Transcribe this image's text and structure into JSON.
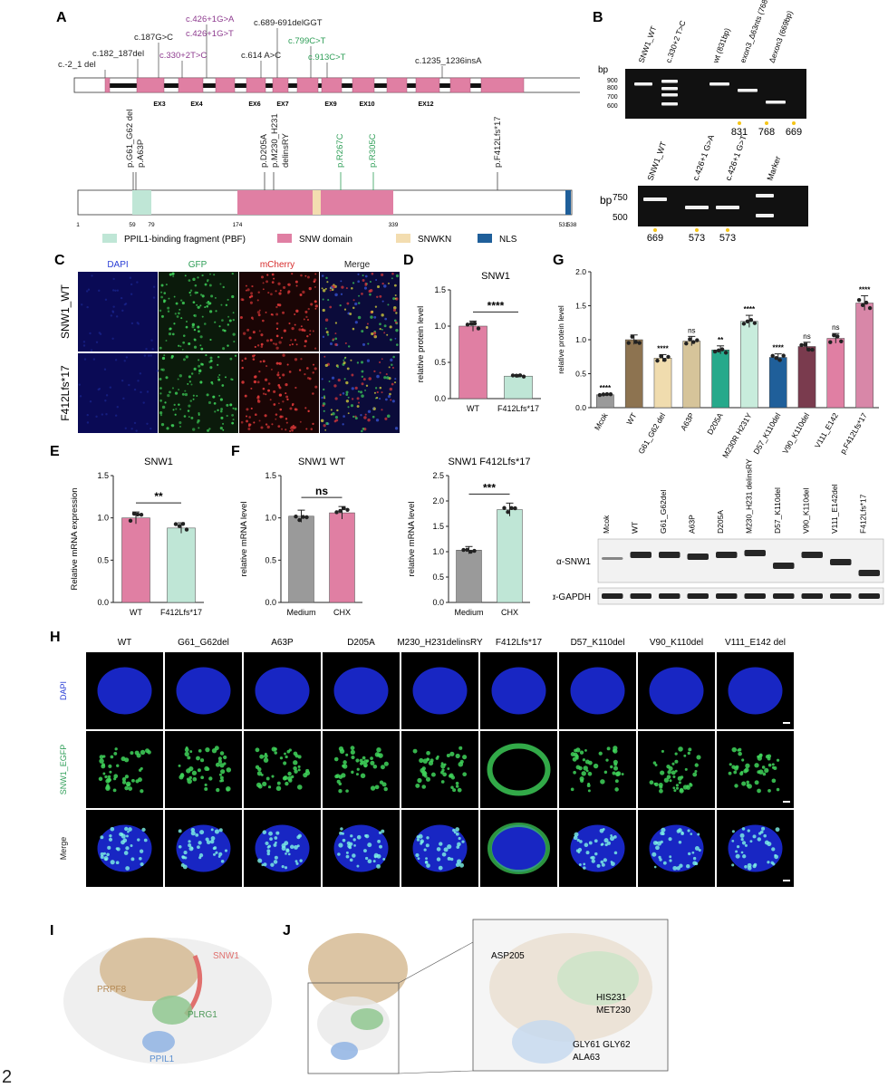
{
  "page_number": "2",
  "colors": {
    "snw_pink": "#e07fa3",
    "pbf_teal": "#bfe6d6",
    "snwkn_beige": "#f3ddb0",
    "nls_blue": "#1f5f9a",
    "purple": "#8e3b8f",
    "green": "#2e9e57",
    "wt_brown": "#8d7350",
    "grey_bar": "#9a9a9a"
  },
  "panelA": {
    "label": "A",
    "exon_labels": [
      "EX3",
      "EX4",
      "EX6",
      "EX7",
      "EX9",
      "EX10",
      "EX12"
    ],
    "mutations_dna": [
      {
        "text": "c.-2_1 del",
        "color": "#222"
      },
      {
        "text": "c.182_187del",
        "color": "#222"
      },
      {
        "text": "c.187G>C",
        "color": "#222"
      },
      {
        "text": "c.330+2T>C",
        "color": "#8e3b8f"
      },
      {
        "text": "c.426+1G>A",
        "color": "#8e3b8f"
      },
      {
        "text": "c.426+1G>T",
        "color": "#8e3b8f"
      },
      {
        "text": "c.614 A>C",
        "color": "#222"
      },
      {
        "text": "c.689-691delGGT",
        "color": "#222"
      },
      {
        "text": "c.799C>T",
        "color": "#2e9e57"
      },
      {
        "text": "c.913C>T",
        "color": "#2e9e57"
      },
      {
        "text": "c.1235_1236insA",
        "color": "#222"
      }
    ],
    "mutations_protein": [
      {
        "text": "p.G61_G62 del",
        "color": "#222"
      },
      {
        "text": "p.A63P",
        "color": "#222"
      },
      {
        "text": "p.D205A",
        "color": "#222"
      },
      {
        "text": "p.M230_H231",
        "color": "#222"
      },
      {
        "text": "delinsRY",
        "color": "#222"
      },
      {
        "text": "p.R267C",
        "color": "#2e9e57"
      },
      {
        "text": "p.R305C",
        "color": "#2e9e57"
      },
      {
        "text": "p.F412Lfs*17",
        "color": "#222"
      }
    ],
    "positions": [
      "1",
      "59",
      "79",
      "174",
      "339",
      "531",
      "538"
    ],
    "legend": [
      {
        "label": "PPIL1-binding fragment (PBF)",
        "color": "#bfe6d6"
      },
      {
        "label": "SNW domain",
        "color": "#e07fa3"
      },
      {
        "label": "SNWKN",
        "color": "#f3ddb0"
      },
      {
        "label": "NLS",
        "color": "#1f5f9a"
      }
    ]
  },
  "panelB": {
    "label": "B",
    "gel1_lanes": [
      "SNW1_WT",
      "c.330+2 T>C",
      "wt (831bp)",
      "exon3_Δ63nts (768bp)",
      "Δexon3 (669bp)"
    ],
    "bp_label": "bp",
    "gel1_ladder": [
      "900",
      "800",
      "700",
      "600"
    ],
    "gel1_sizes": [
      "831",
      "768",
      "669"
    ],
    "gel2_lanes": [
      "SNW1_WT",
      "c.426+1 G>A",
      "c.426+1 G>T",
      "Marker"
    ],
    "gel2_ladder": [
      "750",
      "500"
    ],
    "gel2_sizes": [
      "669",
      "573",
      "573"
    ]
  },
  "panelC": {
    "label": "C",
    "channels": [
      {
        "name": "DAPI",
        "color": "#2b3fd6"
      },
      {
        "name": "GFP",
        "color": "#2e9e57"
      },
      {
        "name": "mCherry",
        "color": "#d62b2b"
      },
      {
        "name": "Merge",
        "color": "#222"
      }
    ],
    "rows": [
      "SNW1_WT",
      "F412Lfs*17"
    ]
  },
  "panelD": {
    "label": "D",
    "chart_data": {
      "type": "bar",
      "title": "SNW1",
      "ylabel": "relative protein level",
      "categories": [
        "WT",
        "F412Lfs*17"
      ],
      "values": [
        1.0,
        0.31
      ],
      "ylim": [
        0,
        1.5
      ],
      "yticks": [
        "0.0",
        "0.5",
        "1.0",
        "1.5"
      ],
      "significance": "****",
      "colors": [
        "#e07fa3",
        "#bfe6d6"
      ]
    }
  },
  "panelE": {
    "label": "E",
    "chart_data": {
      "type": "bar",
      "title": "SNW1",
      "ylabel": "Relative mRNA expression",
      "categories": [
        "WT",
        "F412Lfs*17"
      ],
      "values": [
        1.0,
        0.88
      ],
      "ylim": [
        0,
        1.5
      ],
      "yticks": [
        "0.0",
        "0.5",
        "1.0",
        "1.5"
      ],
      "significance": "**",
      "colors": [
        "#e07fa3",
        "#bfe6d6"
      ]
    }
  },
  "panelF": {
    "label": "F",
    "charts": [
      {
        "type": "bar",
        "title": "SNW1 WT",
        "ylabel": "relative mRNA level",
        "categories": [
          "Medium",
          "CHX"
        ],
        "values": [
          1.02,
          1.06
        ],
        "ylim": [
          0,
          1.5
        ],
        "yticks": [
          "0.0",
          "0.5",
          "1.0",
          "1.5"
        ],
        "significance": "ns",
        "colors": [
          "#9a9a9a",
          "#e07fa3"
        ]
      },
      {
        "type": "bar",
        "title": "SNW1 F412Lfs*17",
        "ylabel": "relative mRNA level",
        "categories": [
          "Medium",
          "CHX"
        ],
        "values": [
          1.03,
          1.83
        ],
        "ylim": [
          0,
          2.5
        ],
        "yticks": [
          "0.0",
          "0.5",
          "1.0",
          "1.5",
          "2.0",
          "2.5"
        ],
        "significance": "***",
        "colors": [
          "#9a9a9a",
          "#bfe6d6"
        ]
      }
    ]
  },
  "panelG": {
    "label": "G",
    "chart_data": {
      "type": "bar",
      "ylabel": "relative protein level",
      "categories": [
        "Mcok",
        "WT",
        "G61_G62 del",
        "A63P",
        "D205A",
        "M230R H231Y",
        "D57_K110del",
        "V90_K110del",
        "V111_E142",
        "p.F412Lfs*17"
      ],
      "values": [
        0.19,
        1.0,
        0.73,
        0.98,
        0.85,
        1.27,
        0.74,
        0.9,
        1.02,
        1.54
      ],
      "significance": [
        "****",
        "",
        "****",
        "ns",
        "**",
        "****",
        "****",
        "ns",
        "ns",
        "****"
      ],
      "colors": [
        "#9a9a9a",
        "#8d7350",
        "#f0dcae",
        "#d6c49a",
        "#26a98b",
        "#c8ecdc",
        "#1f5f9a",
        "#7a3b4e",
        "#e07fa3",
        "#d887a8"
      ],
      "ylim": [
        0,
        2.0
      ],
      "yticks": [
        "0.0",
        "0.5",
        "1.0",
        "1.5",
        "2.0"
      ]
    },
    "blot_lanes": [
      "Mcok",
      "WT",
      "G61_G62del",
      "A63P",
      "D205A",
      "M230_H231 delinsRY",
      "D57_K110del",
      "V90_K110del",
      "V111_E142del",
      "F412Lfs*17"
    ],
    "blot_rows": [
      "α-SNW1",
      "α-GAPDH"
    ]
  },
  "panelH": {
    "label": "H",
    "columns": [
      "WT",
      "G61_G62del",
      "A63P",
      "D205A",
      "M230_H231delinsRY",
      "F412Lfs*17",
      "D57_K110del",
      "V90_K110del",
      "V111_E142 del"
    ],
    "rows": [
      {
        "name": "DAPI",
        "color": "#2b3fd6"
      },
      {
        "name": "SNW1_EGFP",
        "color": "#2e9e57"
      },
      {
        "name": "Merge",
        "color": "#222"
      }
    ]
  },
  "panelI": {
    "label": "I",
    "labels": [
      {
        "text": "PRPF8",
        "color": "#b58a55"
      },
      {
        "text": "SNW1",
        "color": "#e0706e"
      },
      {
        "text": "PLRG1",
        "color": "#4f9a5a"
      },
      {
        "text": "PPIL1",
        "color": "#5b8fd0"
      }
    ]
  },
  "panelJ": {
    "label": "J",
    "zoom_labels": [
      "ASP205",
      "HIS231",
      "MET230",
      "GLY61 GLY62",
      "ALA63"
    ]
  }
}
